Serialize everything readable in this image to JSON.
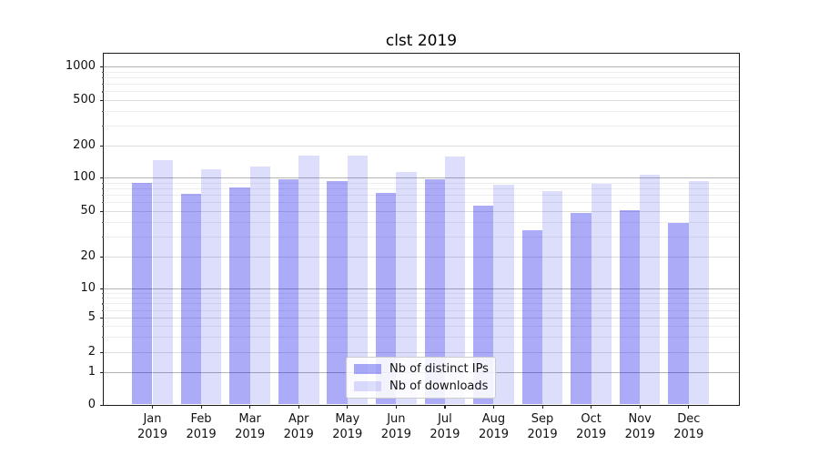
{
  "chart_data": {
    "type": "bar",
    "title": "clst 2019",
    "categories": [
      "Jan",
      "Feb",
      "Mar",
      "Apr",
      "May",
      "Jun",
      "Jul",
      "Aug",
      "Sep",
      "Oct",
      "Nov",
      "Dec"
    ],
    "category_year": "2019",
    "series": [
      {
        "name": "Nb of distinct IPs",
        "color": "rgba(0,0,235,0.33)",
        "color_hex_on_white": "#ababf8",
        "values": [
          90,
          71,
          81,
          97,
          92,
          72,
          96,
          56,
          34,
          48,
          51,
          39
        ]
      },
      {
        "name": "Nb of downloads",
        "color": "rgba(0,0,235,0.135)",
        "color_hex_on_white": "#dcdcf9",
        "values": [
          145,
          120,
          128,
          162,
          162,
          112,
          157,
          86,
          75,
          87,
          107,
          93
        ]
      }
    ],
    "xlabel": "",
    "ylabel": "",
    "yscale": "symlog",
    "ylim": [
      0,
      1310
    ],
    "yticks": [
      0,
      1,
      2,
      5,
      10,
      20,
      50,
      100,
      200,
      500,
      1000
    ],
    "grid": true,
    "legend_position": "lower center"
  },
  "colors": {
    "grid_major": "#b4b4b4",
    "grid_minor": "#eeeeee",
    "grid_minor_labeled": "#dedede",
    "spine": "#1a1a1a",
    "text": "#111111",
    "legend_border": "#cccccc"
  }
}
